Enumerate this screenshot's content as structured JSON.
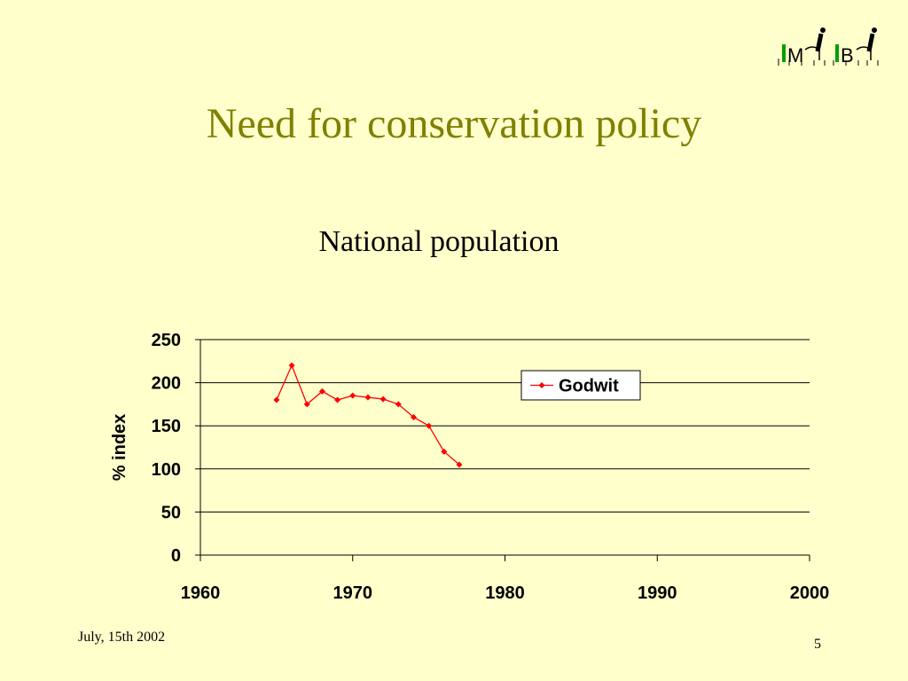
{
  "slide": {
    "title": "Need for conservation policy",
    "date": "July, 15th 2002",
    "page_number": "5"
  },
  "logo": {
    "icon": "mibi-logo-icon",
    "text": "MiBi",
    "colors": {
      "green": "#00a000",
      "ink": "#000000"
    }
  },
  "chart_data": {
    "type": "line",
    "title": "National population",
    "xlabel": "",
    "ylabel": "% index",
    "xlim": [
      1960,
      2000
    ],
    "ylim": [
      0,
      250
    ],
    "x_ticks": [
      1960,
      1970,
      1980,
      1990,
      2000
    ],
    "y_ticks": [
      0,
      50,
      100,
      150,
      200,
      250
    ],
    "grid": "horizontal",
    "legend_position": "top-right",
    "series": [
      {
        "name": "Godwit",
        "color": "#ff0000",
        "marker": "diamond",
        "x": [
          1965,
          1966,
          1967,
          1968,
          1969,
          1970,
          1971,
          1972,
          1973,
          1974,
          1975,
          1976,
          1977
        ],
        "y": [
          180,
          220,
          175,
          190,
          180,
          185,
          183,
          181,
          175,
          160,
          150,
          120,
          105
        ]
      }
    ]
  }
}
